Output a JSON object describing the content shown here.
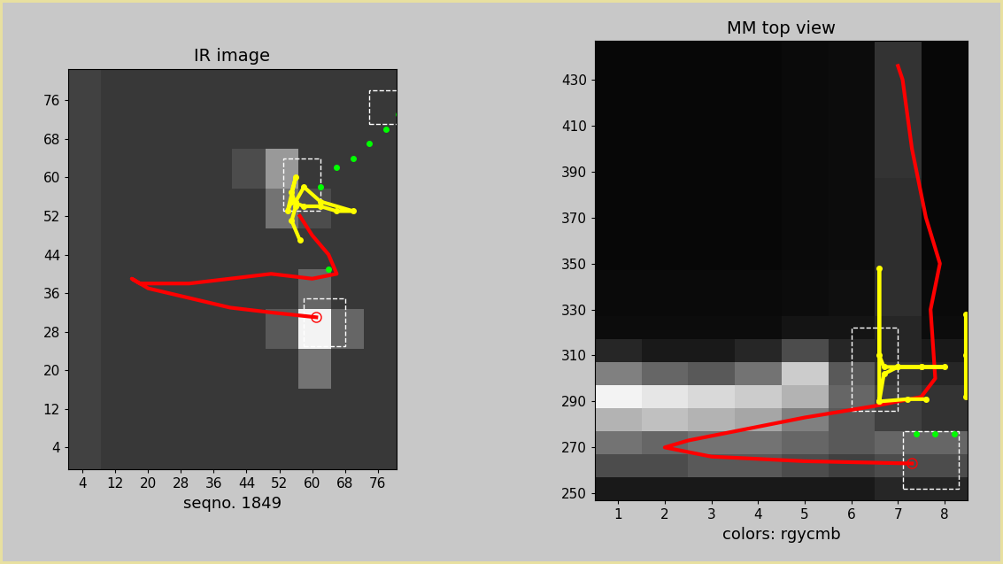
{
  "chart_data": [
    {
      "type": "heatmap",
      "title": "IR image",
      "x_label": "seqno. 1849",
      "xlim": [
        0.5,
        80.5
      ],
      "ylim": [
        -0.5,
        82.5
      ],
      "xticks": [
        4,
        12,
        20,
        28,
        36,
        44,
        52,
        60,
        68,
        76
      ],
      "yticks": [
        4,
        12,
        20,
        28,
        36,
        44,
        52,
        60,
        68,
        76
      ],
      "cells_range": [
        0,
        1
      ],
      "cells": [
        [
          0.26,
          0.22,
          0.22,
          0.22,
          0.22,
          0.22,
          0.22,
          0.22,
          0.22,
          0.22
        ],
        [
          0.26,
          0.22,
          0.22,
          0.22,
          0.22,
          0.22,
          0.22,
          0.22,
          0.22,
          0.22
        ],
        [
          0.26,
          0.22,
          0.22,
          0.22,
          0.22,
          0.22,
          0.22,
          0.45,
          0.22,
          0.22
        ],
        [
          0.26,
          0.22,
          0.22,
          0.22,
          0.22,
          0.22,
          0.35,
          0.95,
          0.4,
          0.22
        ],
        [
          0.26,
          0.22,
          0.22,
          0.22,
          0.22,
          0.22,
          0.22,
          0.4,
          0.22,
          0.22
        ],
        [
          0.26,
          0.22,
          0.22,
          0.22,
          0.22,
          0.22,
          0.22,
          0.22,
          0.22,
          0.22
        ],
        [
          0.26,
          0.22,
          0.22,
          0.22,
          0.22,
          0.22,
          0.45,
          0.3,
          0.22,
          0.22
        ],
        [
          0.26,
          0.22,
          0.22,
          0.22,
          0.22,
          0.3,
          0.6,
          0.22,
          0.22,
          0.22
        ],
        [
          0.26,
          0.22,
          0.22,
          0.22,
          0.22,
          0.22,
          0.22,
          0.22,
          0.22,
          0.22
        ],
        [
          0.26,
          0.22,
          0.22,
          0.22,
          0.22,
          0.22,
          0.22,
          0.22,
          0.22,
          0.22
        ]
      ],
      "regions": [
        [
          53,
          53,
          62,
          64
        ],
        [
          58,
          25,
          68,
          35
        ],
        [
          74,
          71,
          82,
          78
        ]
      ],
      "series": [
        {
          "color": "#ff0000",
          "marker": "none",
          "line_style": "solid",
          "x": [
            61,
            50,
            40,
            30,
            20,
            16,
            18,
            30,
            40,
            50,
            60,
            66,
            64,
            60,
            57
          ],
          "values": [
            31,
            32,
            33,
            35,
            37,
            39,
            38,
            38,
            39,
            40,
            39,
            40,
            44,
            48,
            52
          ]
        },
        {
          "color": "#ffff00",
          "marker": "dot",
          "line_style": "solid",
          "x": [
            57,
            55,
            56,
            55,
            56,
            54,
            55,
            58,
            62,
            66,
            70,
            62,
            58,
            56
          ],
          "values": [
            47,
            51,
            54,
            57,
            60,
            53,
            55,
            54,
            54,
            53,
            53,
            55,
            58,
            55
          ]
        },
        {
          "color": "#00ff00",
          "marker": "dot",
          "line_style": "none",
          "x": [
            64,
            62,
            66,
            70,
            74,
            78,
            81
          ],
          "values": [
            41,
            58,
            62,
            64,
            67,
            70,
            73
          ]
        }
      ]
    },
    {
      "type": "heatmap",
      "title": "MM top view",
      "x_label": "colors: rgycmb",
      "xlim": [
        0.5,
        8.5
      ],
      "ylim": [
        247,
        447
      ],
      "xticks": [
        1,
        2,
        3,
        4,
        5,
        6,
        7,
        8
      ],
      "yticks": [
        250,
        270,
        290,
        310,
        330,
        350,
        370,
        390,
        410,
        430
      ],
      "cells_range": [
        0,
        1
      ],
      "cells": [
        [
          0.1,
          0.1,
          0.1,
          0.1,
          0.1,
          0.1,
          0.15,
          0.15
        ],
        [
          0.3,
          0.3,
          0.35,
          0.35,
          0.3,
          0.25,
          0.3,
          0.3
        ],
        [
          0.45,
          0.4,
          0.45,
          0.45,
          0.4,
          0.35,
          0.4,
          0.4
        ],
        [
          0.7,
          0.75,
          0.7,
          0.65,
          0.5,
          0.35,
          0.25,
          0.2
        ],
        [
          0.95,
          0.9,
          0.85,
          0.8,
          0.7,
          0.4,
          0.25,
          0.2
        ],
        [
          0.5,
          0.4,
          0.35,
          0.45,
          0.8,
          0.35,
          0.2,
          0.15
        ],
        [
          0.15,
          0.1,
          0.1,
          0.15,
          0.3,
          0.15,
          0.15,
          0.1
        ],
        [
          0.05,
          0.05,
          0.05,
          0.05,
          0.08,
          0.08,
          0.15,
          0.05
        ],
        [
          0.04,
          0.04,
          0.04,
          0.04,
          0.05,
          0.06,
          0.18,
          0.04
        ],
        [
          0.04,
          0.04,
          0.04,
          0.04,
          0.05,
          0.06,
          0.18,
          0.04
        ],
        [
          0.03,
          0.03,
          0.03,
          0.03,
          0.04,
          0.05,
          0.18,
          0.03
        ],
        [
          0.03,
          0.03,
          0.03,
          0.03,
          0.04,
          0.05,
          0.18,
          0.03
        ],
        [
          0.03,
          0.03,
          0.03,
          0.03,
          0.04,
          0.05,
          0.18,
          0.03
        ],
        [
          0.03,
          0.03,
          0.03,
          0.03,
          0.04,
          0.05,
          0.18,
          0.03
        ],
        [
          0.03,
          0.03,
          0.03,
          0.03,
          0.04,
          0.05,
          0.2,
          0.03
        ],
        [
          0.03,
          0.03,
          0.03,
          0.03,
          0.04,
          0.05,
          0.2,
          0.03
        ],
        [
          0.03,
          0.03,
          0.03,
          0.03,
          0.04,
          0.05,
          0.2,
          0.03
        ],
        [
          0.03,
          0.03,
          0.03,
          0.03,
          0.04,
          0.05,
          0.2,
          0.03
        ],
        [
          0.03,
          0.03,
          0.03,
          0.03,
          0.04,
          0.05,
          0.2,
          0.03
        ],
        [
          0.03,
          0.03,
          0.03,
          0.03,
          0.04,
          0.05,
          0.2,
          0.03
        ]
      ],
      "regions": [
        [
          6,
          286,
          7,
          322
        ],
        [
          7.1,
          252,
          8.3,
          277
        ]
      ],
      "series": [
        {
          "color": "#ff0000",
          "marker": "none",
          "line_style": "solid",
          "x": [
            7.3,
            5,
            3,
            2,
            2.5,
            3.5,
            5,
            6.5,
            7.5,
            7.8,
            7.7,
            7.9,
            7.6,
            7.3,
            7.1,
            7
          ],
          "values": [
            263,
            264,
            266,
            270,
            273,
            277,
            283,
            288,
            292,
            300,
            330,
            350,
            370,
            400,
            430,
            436
          ]
        },
        {
          "color": "#ffff00",
          "marker": "dot",
          "line_style": "solid",
          "x": [
            6.6,
            6.6,
            6.6,
            6.7,
            7.0,
            7.5,
            8.0,
            7.5,
            7.0,
            6.7,
            6.6,
            7.2,
            7.6
          ],
          "values": [
            290,
            348,
            310,
            305,
            305,
            305,
            305,
            305,
            305,
            302,
            290,
            291,
            291
          ]
        },
        {
          "color": "#ffff00",
          "marker": "dot",
          "line_style": "solid",
          "x": [
            8.45,
            8.45,
            8.45
          ],
          "values": [
            292,
            310,
            328
          ]
        },
        {
          "color": "#00ff00",
          "marker": "dot",
          "line_style": "none",
          "x": [
            7.4,
            7.8,
            8.2
          ],
          "values": [
            276,
            276,
            276
          ]
        }
      ]
    }
  ]
}
